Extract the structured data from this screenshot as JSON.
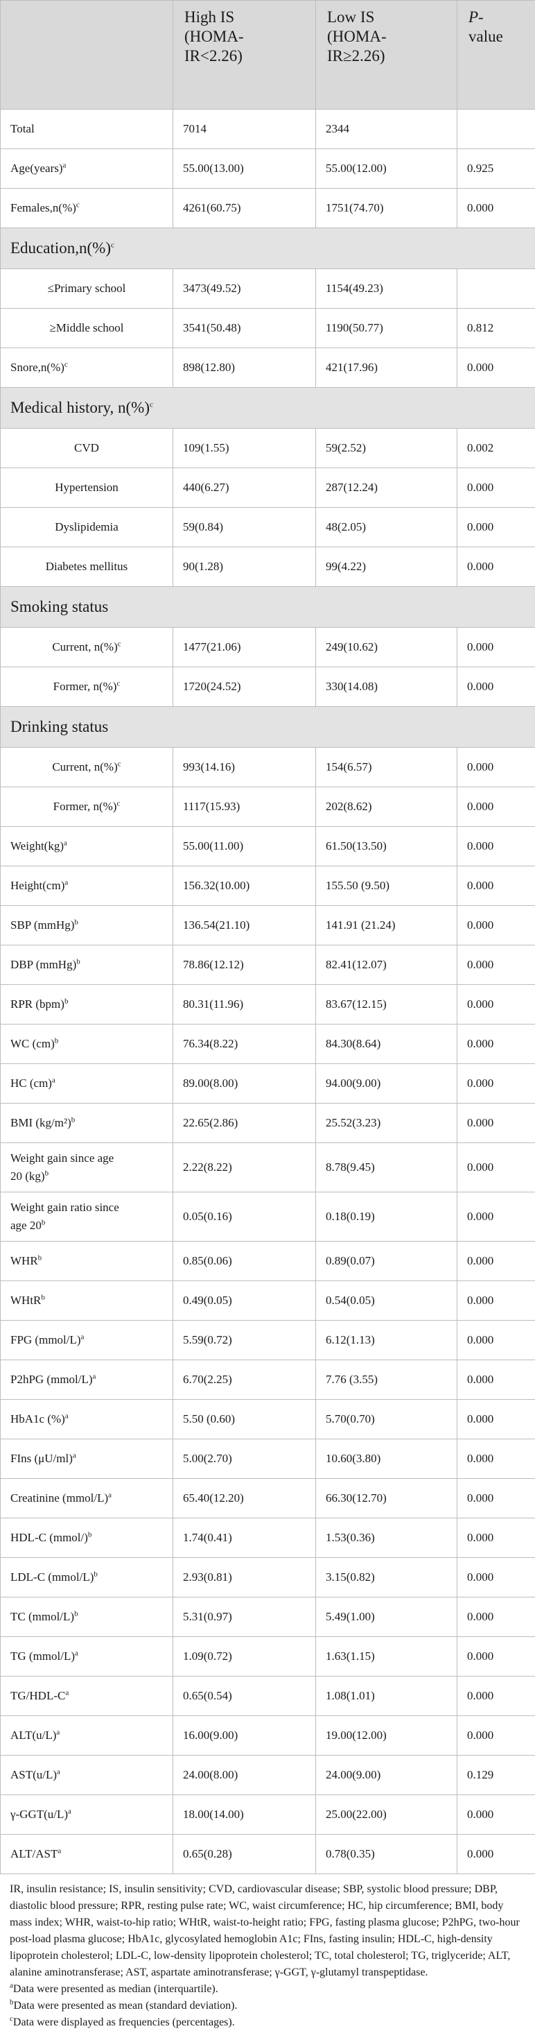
{
  "header": {
    "col1": "",
    "col2_lines": [
      "High IS",
      "(HOMA-",
      "IR<2.26)"
    ],
    "col3_lines": [
      "Low IS",
      "(HOMA-",
      "IR≥2.26)"
    ],
    "col4_lines": [
      "P-",
      "value"
    ]
  },
  "rows": [
    {
      "type": "data",
      "label": "Total",
      "sup": "",
      "c2": "7014",
      "c3": "2344",
      "p": ""
    },
    {
      "type": "data",
      "label": "Age(years)",
      "sup": "a",
      "c2": "55.00(13.00)",
      "c3": "55.00(12.00)",
      "p": "0.925"
    },
    {
      "type": "data",
      "label": "Females,n(%)",
      "sup": "c",
      "c2": "4261(60.75)",
      "c3": "1751(74.70)",
      "p": "0.000"
    },
    {
      "type": "section",
      "label": "Education,n(%)",
      "sup": "c"
    },
    {
      "type": "data",
      "indent": true,
      "label": "≤Primary school",
      "sup": "",
      "c2": "3473(49.52)",
      "c3": "1154(49.23)",
      "p": ""
    },
    {
      "type": "data",
      "indent": true,
      "label": "≥Middle school",
      "sup": "",
      "c2": "3541(50.48)",
      "c3": "1190(50.77)",
      "p": "0.812"
    },
    {
      "type": "data",
      "label": "Snore,n(%)",
      "sup": "c",
      "c2": "898(12.80)",
      "c3": "421(17.96)",
      "p": "0.000"
    },
    {
      "type": "section",
      "label": "Medical history, n(%)",
      "sup": "c"
    },
    {
      "type": "data",
      "indent": true,
      "label": "CVD",
      "sup": "",
      "c2": "109(1.55)",
      "c3": "59(2.52)",
      "p": "0.002"
    },
    {
      "type": "data",
      "indent": true,
      "label": "Hypertension",
      "sup": "",
      "c2": "440(6.27)",
      "c3": "287(12.24)",
      "p": "0.000"
    },
    {
      "type": "data",
      "indent": true,
      "label": "Dyslipidemia",
      "sup": "",
      "c2": "59(0.84)",
      "c3": "48(2.05)",
      "p": "0.000"
    },
    {
      "type": "data",
      "indent": true,
      "label": "Diabetes mellitus",
      "sup": "",
      "c2": "90(1.28)",
      "c3": "99(4.22)",
      "p": "0.000"
    },
    {
      "type": "section",
      "label": "Smoking status",
      "sup": ""
    },
    {
      "type": "data",
      "indent": true,
      "label": "Current, n(%)",
      "sup": "c",
      "c2": "1477(21.06)",
      "c3": "249(10.62)",
      "p": "0.000"
    },
    {
      "type": "data",
      "indent": true,
      "label": "Former, n(%)",
      "sup": "c",
      "c2": "1720(24.52)",
      "c3": "330(14.08)",
      "p": "0.000"
    },
    {
      "type": "section",
      "label": "Drinking status",
      "sup": ""
    },
    {
      "type": "data",
      "indent": true,
      "label": "Current, n(%)",
      "sup": "c",
      "c2": "993(14.16)",
      "c3": "154(6.57)",
      "p": "0.000"
    },
    {
      "type": "data",
      "indent": true,
      "label": "Former, n(%)",
      "sup": "c",
      "c2": "1117(15.93)",
      "c3": "202(8.62)",
      "p": "0.000"
    },
    {
      "type": "data",
      "label": "Weight(kg)",
      "sup": "a",
      "c2": "55.00(11.00)",
      "c3": "61.50(13.50)",
      "p": "0.000"
    },
    {
      "type": "data",
      "label": "Height(cm)",
      "sup": "a",
      "c2": "156.32(10.00)",
      "c3": "155.50 (9.50)",
      "p": "0.000"
    },
    {
      "type": "data",
      "label": "SBP (mmHg)",
      "sup": "b",
      "c2": "136.54(21.10)",
      "c3": "141.91 (21.24)",
      "p": "0.000"
    },
    {
      "type": "data",
      "label": "DBP (mmHg)",
      "sup": "b",
      "c2": "78.86(12.12)",
      "c3": "82.41(12.07)",
      "p": "0.000"
    },
    {
      "type": "data",
      "label": "RPR (bpm)",
      "sup": "b",
      "c2": "80.31(11.96)",
      "c3": "83.67(12.15)",
      "p": "0.000"
    },
    {
      "type": "data",
      "label": "WC (cm)",
      "sup": "b",
      "c2": "76.34(8.22)",
      "c3": "84.30(8.64)",
      "p": "0.000"
    },
    {
      "type": "data",
      "label": "HC (cm)",
      "sup": "a",
      "c2": "89.00(8.00)",
      "c3": "94.00(9.00)",
      "p": "0.000"
    },
    {
      "type": "data",
      "label": "BMI (kg/m²)",
      "sup": "b",
      "c2": "22.65(2.86)",
      "c3": "25.52(3.23)",
      "p": "0.000"
    },
    {
      "type": "data2",
      "label1": "Weight gain since age",
      "label2": "20 (kg)",
      "sup": "b",
      "c2": "2.22(8.22)",
      "c3": "8.78(9.45)",
      "p": "0.000"
    },
    {
      "type": "data2",
      "label1": "Weight gain ratio since",
      "label2": "age 20",
      "sup": "b",
      "c2": "0.05(0.16)",
      "c3": "0.18(0.19)",
      "p": "0.000"
    },
    {
      "type": "data",
      "label": "WHR",
      "sup": "b",
      "c2": "0.85(0.06)",
      "c3": "0.89(0.07)",
      "p": "0.000"
    },
    {
      "type": "data",
      "label": "WHtR",
      "sup": "b",
      "c2": "0.49(0.05)",
      "c3": "0.54(0.05)",
      "p": "0.000"
    },
    {
      "type": "data",
      "label": "FPG (mmol/L)",
      "sup": "a",
      "c2": "5.59(0.72)",
      "c3": "6.12(1.13)",
      "p": "0.000"
    },
    {
      "type": "data",
      "label": "P2hPG (mmol/L)",
      "sup": "a",
      "c2": "6.70(2.25)",
      "c3": "7.76 (3.55)",
      "p": "0.000"
    },
    {
      "type": "data",
      "label": "HbA1c (%)",
      "sup": "a",
      "c2": "5.50 (0.60)",
      "c3": "5.70(0.70)",
      "p": "0.000"
    },
    {
      "type": "data",
      "label": "FIns (μU/ml)",
      "sup": "a",
      "c2": "5.00(2.70)",
      "c3": "10.60(3.80)",
      "p": "0.000"
    },
    {
      "type": "data",
      "label": "Creatinine (mmol/L)",
      "sup": "a",
      "c2": "65.40(12.20)",
      "c3": "66.30(12.70)",
      "p": "0.000"
    },
    {
      "type": "data",
      "label": "HDL-C (mmol/)",
      "sup": "b",
      "c2": "1.74(0.41)",
      "c3": "1.53(0.36)",
      "p": "0.000"
    },
    {
      "type": "data",
      "label": "LDL-C (mmol/L)",
      "sup": "b",
      "c2": "2.93(0.81)",
      "c3": "3.15(0.82)",
      "p": "0.000"
    },
    {
      "type": "data",
      "label": "TC (mmol/L)",
      "sup": "b",
      "c2": "5.31(0.97)",
      "c3": "5.49(1.00)",
      "p": "0.000"
    },
    {
      "type": "data",
      "label": "TG (mmol/L)",
      "sup": "a",
      "c2": "1.09(0.72)",
      "c3": "1.63(1.15)",
      "p": "0.000"
    },
    {
      "type": "data",
      "label": "TG/HDL-C",
      "sup": "a",
      "c2": "0.65(0.54)",
      "c3": "1.08(1.01)",
      "p": "0.000"
    },
    {
      "type": "data",
      "label": "ALT(u/L)",
      "sup": "a",
      "c2": "16.00(9.00)",
      "c3": "19.00(12.00)",
      "p": "0.000"
    },
    {
      "type": "data",
      "label": "AST(u/L)",
      "sup": "a",
      "c2": "24.00(8.00)",
      "c3": "24.00(9.00)",
      "p": "0.129"
    },
    {
      "type": "data",
      "label": "γ-GGT(u/L)",
      "sup": "a",
      "c2": "18.00(14.00)",
      "c3": "25.00(22.00)",
      "p": "0.000"
    },
    {
      "type": "data",
      "label": "ALT/AST",
      "sup": "a",
      "c2": "0.65(0.28)",
      "c3": "0.78(0.35)",
      "p": "0.000"
    }
  ],
  "footnotes": {
    "abbreviations": "IR, insulin resistance; IS, insulin sensitivity; CVD, cardiovascular disease; SBP, systolic blood pressure; DBP, diastolic blood pressure; RPR, resting pulse rate; WC, waist circumference; HC, hip circumference; BMI, body mass index; WHR, waist-to-hip ratio; WHtR, waist-to-height ratio; FPG, fasting plasma glucose; P2hPG, two-hour post-load plasma glucose; HbA1c, glycosylated hemoglobin A1c; FIns, fasting insulin; HDL-C, high-density lipoprotein cholesterol; LDL-C, low-density lipoprotein cholesterol; TC, total cholesterol; TG, triglyceride; ALT, alanine aminotransferase; AST, aspartate aminotransferase; γ-GGT, γ-glutamyl transpeptidase.",
    "notes": [
      {
        "mark": "a",
        "text": "Data were presented as median (interquartile)."
      },
      {
        "mark": "b",
        "text": "Data were presented as mean (standard deviation)."
      },
      {
        "mark": "c",
        "text": "Data were displayed as frequencies (percentages)."
      }
    ]
  }
}
